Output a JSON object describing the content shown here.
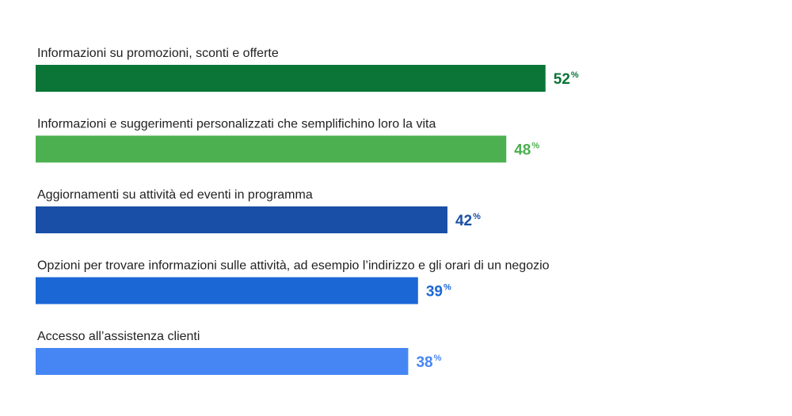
{
  "chart_data": {
    "type": "bar",
    "orientation": "horizontal",
    "categories": [
      "Informazioni su promozioni, sconti e offerte",
      "Informazioni e suggerimenti personalizzati che semplifichino loro la vita",
      "Aggiornamenti su attività ed eventi in programma",
      "Opzioni per trovare informazioni sulle attività, ad esempio l’indirizzo e gli orari di un negozio",
      "Accesso all’assistenza clienti"
    ],
    "values": [
      52,
      48,
      42,
      39,
      38
    ],
    "value_suffix": "%",
    "colors": [
      "#0a7537",
      "#4cb050",
      "#194fa6",
      "#1c67d6",
      "#4686f4"
    ],
    "title": "",
    "xlabel": "",
    "ylabel": "",
    "xlim": [
      0,
      100
    ],
    "grid": false,
    "legend": "none"
  }
}
